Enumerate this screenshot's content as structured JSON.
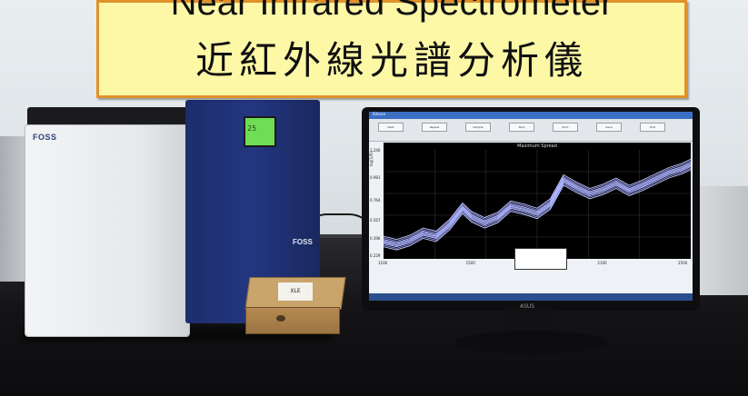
{
  "banner": {
    "title_en": "Near Infrared Spectrometer",
    "title_zh": "近紅外線光譜分析儀"
  },
  "analyzer": {
    "brand_front": "FOSS",
    "brand_side": "FOSS",
    "display_value": "25"
  },
  "wooden_box": {
    "label": "XLE"
  },
  "monitor": {
    "brand": "ASUS",
    "software": {
      "window_title": "ISIscan",
      "toolbar_buttons": [
        "Next",
        "Repeat",
        "Sample",
        "Stop",
        "Print",
        "Save",
        "Exit"
      ],
      "plot_title": "Maximum Spread"
    }
  },
  "chart_data": {
    "type": "line",
    "title": "Maximum Spread",
    "xlabel": "",
    "ylabel": "log(1/R)",
    "x_ticks": [
      "1100",
      "1500",
      "1750",
      "2100",
      "2500"
    ],
    "y_ticks": [
      "1.240",
      "0.981",
      "0.764",
      "0.567",
      "0.396",
      "0.229"
    ],
    "xlim": [
      1100,
      2500
    ],
    "ylim": [
      0.229,
      1.24
    ],
    "series": [
      {
        "x": [
          1100,
          1160,
          1220,
          1280,
          1340,
          1400,
          1460,
          1500,
          1560,
          1620,
          1680,
          1740,
          1800,
          1860,
          1920,
          1980,
          2040,
          2100,
          2160,
          2220,
          2280,
          2340,
          2400,
          2460,
          2500
        ],
        "values": [
          0.36,
          0.33,
          0.37,
          0.44,
          0.41,
          0.52,
          0.68,
          0.6,
          0.54,
          0.59,
          0.7,
          0.67,
          0.63,
          0.72,
          0.95,
          0.88,
          0.82,
          0.86,
          0.92,
          0.85,
          0.9,
          0.96,
          1.02,
          1.06,
          1.1
        ]
      }
    ]
  }
}
